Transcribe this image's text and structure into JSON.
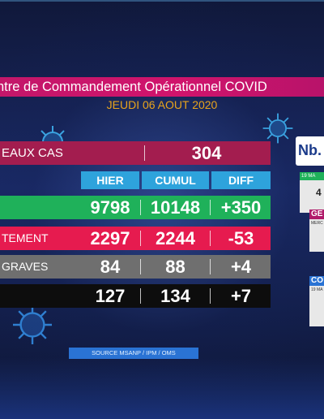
{
  "header": {
    "title": "ntre de Commandement Opérationnel COVID",
    "date": "JEUDI 06 AOUT 2020"
  },
  "new_cases": {
    "label": "EAUX CAS",
    "value": "304"
  },
  "columns": {
    "hier": "HIER",
    "cumul": "CUMUL",
    "diff": "DIFF"
  },
  "rows": [
    {
      "label": "",
      "hier": "9798",
      "cumul": "10148",
      "diff": "+350",
      "color": "#1fb15a"
    },
    {
      "label": "TEMENT",
      "hier": "2297",
      "cumul": "2244",
      "diff": "-53",
      "color": "#e61b4f"
    },
    {
      "label": "GRAVES",
      "hier": "84",
      "cumul": "88",
      "diff": "+4",
      "color": "#6f6f6f"
    },
    {
      "label": "",
      "hier": "127",
      "cumul": "134",
      "diff": "+7",
      "color": "#0d0d0d"
    }
  ],
  "source": "SOURCE MSANP / IPM / OMS",
  "side": {
    "title": "Nb.",
    "box1_date": "19 MA",
    "box1_value": "4",
    "box2_label": "GE",
    "box2_date": "MERC",
    "box3_label": "CO",
    "box3_date": "19 MA"
  },
  "colors": {
    "title_bar": "#c3176a",
    "date": "#e8a41c",
    "new_cases_bar": "#a31d4f",
    "header_cells": "#2ea3dc",
    "source_bar": "#2a73d4"
  }
}
